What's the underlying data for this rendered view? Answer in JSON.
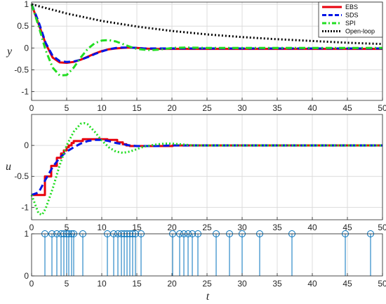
{
  "chart_data": [
    {
      "type": "line",
      "panel": "top",
      "ylabel": "y",
      "xlim": [
        0,
        50
      ],
      "ylim": [
        -1.2,
        1.05
      ],
      "xticks": [
        0,
        5,
        10,
        15,
        20,
        25,
        30,
        35,
        40,
        45,
        50
      ],
      "yticks": [
        1,
        0.5,
        0,
        -0.5,
        -1
      ],
      "ytick_labels": [
        "1",
        "0.5",
        "0",
        "-0.5",
        "-1"
      ],
      "grid": true,
      "legend_position": "top-right",
      "series": [
        {
          "name": "EBS",
          "color": "#e8000b",
          "style": "solid",
          "x": [
            0,
            1,
            2,
            3,
            4,
            5,
            6,
            7,
            8,
            9,
            10,
            11,
            12,
            13,
            14,
            15,
            16,
            17,
            18,
            20,
            25,
            30,
            35,
            40,
            45,
            50
          ],
          "y": [
            1,
            0.55,
            0.1,
            -0.22,
            -0.33,
            -0.34,
            -0.32,
            -0.27,
            -0.2,
            -0.13,
            -0.07,
            -0.03,
            -0.01,
            0.0,
            0.01,
            0.0,
            -0.01,
            -0.02,
            -0.02,
            -0.02,
            -0.02,
            -0.02,
            -0.02,
            -0.02,
            -0.02,
            -0.02
          ]
        },
        {
          "name": "SDS",
          "color": "#0015e6",
          "style": "dashed",
          "x": [
            0,
            1,
            2,
            3,
            4,
            5,
            6,
            7,
            8,
            9,
            10,
            11,
            12,
            13,
            14,
            15,
            16,
            17,
            18,
            20,
            25,
            30,
            35,
            40,
            45,
            50
          ],
          "y": [
            1,
            0.6,
            0.12,
            -0.18,
            -0.3,
            -0.32,
            -0.31,
            -0.27,
            -0.21,
            -0.14,
            -0.08,
            -0.03,
            0.0,
            0.01,
            0.01,
            0.0,
            -0.01,
            -0.01,
            -0.01,
            -0.01,
            -0.01,
            -0.01,
            -0.01,
            -0.01,
            -0.01,
            -0.01
          ]
        },
        {
          "name": "SPI",
          "color": "#22dd22",
          "style": "dashdot",
          "x": [
            0,
            1,
            2,
            3,
            4,
            5,
            6,
            7,
            8,
            9,
            10,
            11,
            12,
            13,
            14,
            15,
            16,
            17,
            18,
            19,
            20,
            22,
            25,
            30,
            35,
            40,
            45,
            50
          ],
          "y": [
            1,
            0.5,
            -0.05,
            -0.45,
            -0.63,
            -0.62,
            -0.45,
            -0.22,
            -0.02,
            0.11,
            0.17,
            0.18,
            0.15,
            0.09,
            0.03,
            -0.02,
            -0.04,
            -0.05,
            -0.04,
            -0.02,
            0.0,
            0.01,
            0.0,
            0.0,
            0.0,
            0.0,
            0.0,
            0.0
          ]
        },
        {
          "name": "Open-loop",
          "color": "#000000",
          "style": "dotted",
          "x": [
            0,
            5,
            10,
            15,
            20,
            25,
            30,
            35,
            40,
            45,
            50
          ],
          "y": [
            1,
            0.79,
            0.62,
            0.49,
            0.39,
            0.31,
            0.25,
            0.2,
            0.16,
            0.12,
            0.09
          ]
        }
      ]
    },
    {
      "type": "line",
      "panel": "middle",
      "ylabel": "u",
      "xlim": [
        0,
        50
      ],
      "ylim": [
        -1.2,
        0.5
      ],
      "xticks": [
        0,
        5,
        10,
        15,
        20,
        25,
        30,
        35,
        40,
        45,
        50
      ],
      "yticks": [
        0,
        -0.5,
        -1
      ],
      "ytick_labels": [
        "0",
        "-0.5",
        "-1"
      ],
      "grid": true,
      "series": [
        {
          "name": "EBS",
          "color": "#e8000b",
          "style": "step",
          "x": [
            0,
            1.9,
            2.8,
            3.6,
            4.2,
            4.6,
            5.0,
            5.3,
            5.7,
            6.0,
            7.3,
            10.8,
            12.2,
            13.0,
            13.5,
            14.0,
            15.6,
            20.1,
            25,
            30,
            35,
            40,
            45,
            50
          ],
          "y": [
            -0.8,
            -0.5,
            -0.33,
            -0.2,
            -0.13,
            -0.08,
            -0.03,
            0.0,
            0.04,
            0.07,
            0.1,
            0.09,
            0.05,
            0.02,
            0.0,
            -0.01,
            -0.01,
            0.0,
            0.0,
            0.0,
            0.0,
            0.0,
            0.0,
            0.0
          ]
        },
        {
          "name": "SDS",
          "color": "#0015e6",
          "style": "dashed",
          "x": [
            0,
            1,
            2,
            3,
            4,
            5,
            6,
            7,
            8,
            9,
            10,
            11,
            12,
            13,
            14,
            15,
            16,
            18,
            20,
            25,
            30,
            35,
            40,
            45,
            50
          ],
          "y": [
            -0.8,
            -0.76,
            -0.55,
            -0.35,
            -0.2,
            -0.1,
            -0.03,
            0.03,
            0.07,
            0.09,
            0.09,
            0.07,
            0.04,
            0.02,
            0.0,
            -0.01,
            -0.01,
            -0.01,
            0.0,
            0.0,
            0.0,
            0.0,
            0.0,
            0.0,
            0.0
          ]
        },
        {
          "name": "SPI",
          "color": "#22dd22",
          "style": "dotted",
          "x": [
            0,
            0.5,
            1,
            1.5,
            2,
            3,
            4,
            5,
            6,
            7,
            7.5,
            8,
            9,
            10,
            11,
            12,
            13,
            14,
            15,
            16,
            17,
            18,
            19,
            20,
            21,
            22,
            23,
            25,
            30,
            35,
            40,
            45,
            50
          ],
          "y": [
            -0.8,
            -0.95,
            -1.1,
            -1.12,
            -1.02,
            -0.7,
            -0.32,
            0.0,
            0.22,
            0.35,
            0.36,
            0.34,
            0.22,
            0.08,
            -0.03,
            -0.1,
            -0.12,
            -0.1,
            -0.06,
            -0.02,
            0.0,
            0.02,
            0.03,
            0.03,
            0.02,
            0.01,
            0.0,
            0.0,
            0.0,
            0.0,
            0.0,
            0.0,
            0.0
          ]
        }
      ]
    },
    {
      "type": "stem",
      "panel": "bottom",
      "xlabel": "t",
      "xlim": [
        0,
        50
      ],
      "ylim": [
        0,
        1
      ],
      "xticks": [
        0,
        5,
        10,
        15,
        20,
        25,
        30,
        35,
        40,
        45,
        50
      ],
      "yticks": [
        1,
        0
      ],
      "ytick_labels": [
        "1",
        "0"
      ],
      "grid": true,
      "color": "#0072bd",
      "events_x": [
        1.9,
        2.9,
        3.6,
        4.2,
        4.6,
        5.0,
        5.3,
        5.7,
        6.0,
        7.3,
        10.8,
        11.7,
        12.3,
        12.8,
        13.2,
        13.6,
        14.0,
        14.4,
        14.8,
        15.6,
        20.1,
        21.1,
        21.7,
        22.3,
        22.9,
        23.7,
        26.3,
        28.2,
        30.0,
        32.5,
        37.1,
        44.7,
        48.3
      ],
      "events_y": 1
    }
  ]
}
